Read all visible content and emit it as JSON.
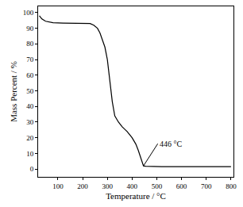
{
  "chart_data": {
    "type": "line",
    "x_label": "Temperature / °C",
    "y_label": "Mass Percent / %",
    "x": [
      25,
      35,
      50,
      65,
      80,
      120,
      160,
      200,
      230,
      245,
      260,
      270,
      280,
      290,
      300,
      310,
      320,
      330,
      345,
      360,
      380,
      400,
      415,
      425,
      435,
      442,
      446,
      455,
      480,
      520,
      600,
      700,
      800
    ],
    "values": [
      98,
      96,
      94.5,
      94,
      93.5,
      93.3,
      93.3,
      93.2,
      93,
      92,
      90,
      87,
      83,
      78,
      70,
      57,
      43,
      34,
      30,
      27,
      24,
      20,
      16,
      12,
      7,
      4,
      2,
      1.8,
      1.6,
      1.5,
      1.5,
      1.5,
      1.5
    ],
    "color": "#000000",
    "xlim": [
      20,
      810
    ],
    "xticks": [
      100,
      200,
      300,
      400,
      500,
      600,
      700,
      800
    ],
    "ylim": [
      -5,
      104
    ],
    "yticks": [
      0,
      10,
      20,
      30,
      40,
      50,
      60,
      70,
      80,
      90,
      100
    ],
    "grid": false,
    "annotations": [
      {
        "text": "446 °C",
        "x": 446,
        "y": 2
      }
    ]
  }
}
